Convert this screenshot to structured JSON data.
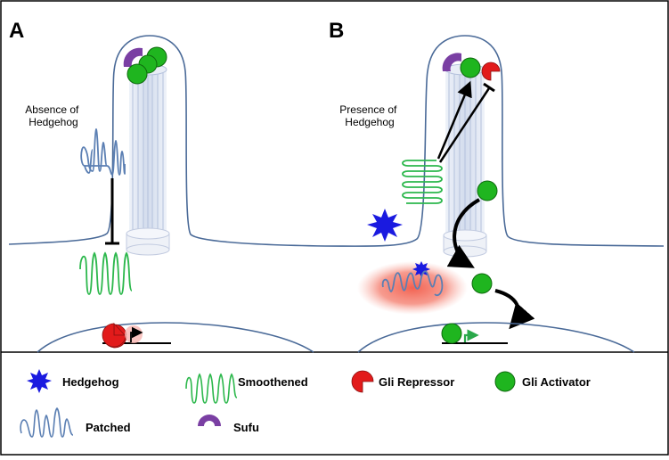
{
  "panels": {
    "a": {
      "letter": "A",
      "annotation": [
        "Absence of",
        "Hedgehog"
      ]
    },
    "b": {
      "letter": "B",
      "annotation": [
        "Presence of",
        "Hedgehog"
      ]
    }
  },
  "legend": {
    "hedgehog": "Hedgehog",
    "smoothened": "Smoothened",
    "gli_repressor": "Gli Repressor",
    "gli_activator": "Gli Activator",
    "patched": "Patched",
    "sufu": "Sufu"
  },
  "colors": {
    "membrane": "#4a6a98",
    "cilium_fill": "#dfe6f3",
    "patched": "#5b7fb3",
    "smoothened": "#2db84d",
    "hedgehog": "#1a1ae0",
    "gli_repressor": "#e21b1b",
    "gli_activator": "#1fb51f",
    "sufu": "#7a3fa3",
    "gene_arrow": "#2aa84a",
    "nucleus_glow": "#f0604f"
  }
}
